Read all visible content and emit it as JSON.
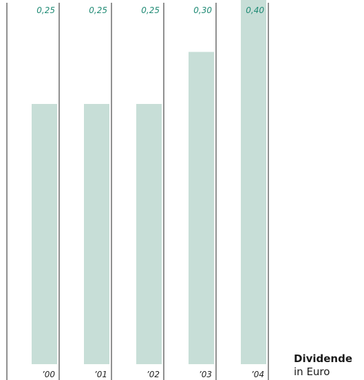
{
  "chart_data": {
    "type": "bar",
    "categories": [
      "’00",
      "’01",
      "’02",
      "’03",
      "’04"
    ],
    "values": [
      0.25,
      0.25,
      0.25,
      0.3,
      0.4
    ],
    "value_labels": [
      "0,25",
      "0,25",
      "0,25",
      "0,30",
      "0,40"
    ],
    "title": "Dividende",
    "subtitle": "in Euro",
    "xlabel": "",
    "ylabel": "",
    "grid": false,
    "legend": "none"
  },
  "colors": {
    "bar": "#c7ded7",
    "value_label": "#1f8a74",
    "rule": "#222222"
  }
}
